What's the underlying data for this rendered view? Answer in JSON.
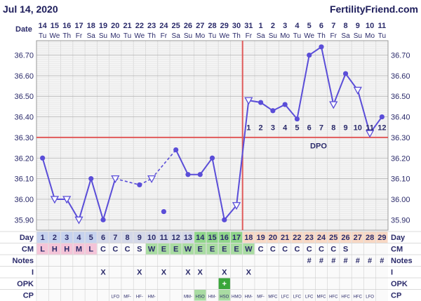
{
  "header": {
    "date_label": "Jul 14, 2020",
    "brand": "FertilityFriend.com"
  },
  "chart_data": {
    "type": "line",
    "ylim": [
      35.85,
      36.77
    ],
    "yticks": [
      "36.70",
      "36.60",
      "36.50",
      "36.40",
      "36.30",
      "36.20",
      "36.10",
      "36.00",
      "35.90"
    ],
    "ytick_values": [
      36.7,
      36.6,
      36.5,
      36.4,
      36.3,
      36.2,
      36.1,
      36.0,
      35.9
    ],
    "row_labels": {
      "date": "Date",
      "day": "Day",
      "cm": "CM",
      "notes": "Notes",
      "i": "I",
      "opk": "OPK",
      "cp": "CP"
    },
    "dates": [
      "14",
      "15",
      "16",
      "17",
      "18",
      "19",
      "20",
      "21",
      "22",
      "23",
      "24",
      "25",
      "26",
      "27",
      "28",
      "29",
      "30",
      "31",
      "1",
      "2",
      "3",
      "4",
      "5",
      "6",
      "7",
      "8",
      "9",
      "10",
      "11"
    ],
    "weekdays": [
      "Tu",
      "We",
      "Th",
      "Fr",
      "Sa",
      "Su",
      "Mo",
      "Tu",
      "We",
      "Th",
      "Fr",
      "Sa",
      "Su",
      "Mo",
      "Tu",
      "We",
      "Th",
      "Fr",
      "Sa",
      "Su",
      "Mo",
      "Tu",
      "We",
      "Th",
      "Fr",
      "Sa",
      "Su",
      "Mo",
      "Tu"
    ],
    "days": [
      "1",
      "2",
      "3",
      "4",
      "5",
      "6",
      "7",
      "8",
      "9",
      "10",
      "11",
      "12",
      "13",
      "14",
      "15",
      "16",
      "17",
      "18",
      "19",
      "20",
      "21",
      "22",
      "23",
      "24",
      "25",
      "26",
      "27",
      "28",
      "29"
    ],
    "temps": [
      36.2,
      36.0,
      36.0,
      35.9,
      36.1,
      35.9,
      36.1,
      null,
      36.07,
      36.1,
      35.94,
      36.24,
      36.12,
      36.12,
      36.2,
      35.9,
      35.97,
      36.48,
      36.47,
      36.43,
      36.46,
      36.39,
      36.7,
      36.74,
      36.46,
      36.61,
      36.53,
      36.32,
      36.4
    ],
    "marker": [
      "c",
      "t",
      "t",
      "t",
      "c",
      "c",
      "t",
      null,
      "c",
      "t",
      "c",
      "c",
      "c",
      "c",
      "c",
      "c",
      "t",
      "t",
      "c",
      "c",
      "c",
      "c",
      "c",
      "c",
      "t",
      "c",
      "t",
      "t",
      "c"
    ],
    "series_breaks": [
      [
        5,
        6,
        "solid"
      ],
      [
        6,
        8,
        "dashed"
      ],
      [
        9,
        11,
        "dashed"
      ],
      [
        10,
        "isolated"
      ]
    ],
    "coverline": 36.3,
    "ovulation_day": 17,
    "dpo_numbers": [
      "1",
      "2",
      "3",
      "4",
      "5",
      "6",
      "7",
      "8",
      "9",
      "10",
      "11",
      "12"
    ],
    "dpo_label": "DPO",
    "cm": [
      "L",
      "H",
      "H",
      "M",
      "L",
      "C",
      "C",
      "C",
      "S",
      "W",
      "E",
      "E",
      "W",
      "E",
      "E",
      "E",
      "E",
      "W",
      "C",
      "C",
      "C",
      "C",
      "C",
      "C",
      "C",
      "S",
      "",
      "",
      ""
    ],
    "notes": [
      "",
      "",
      "",
      "",
      "",
      "",
      "",
      "",
      "",
      "",
      "",
      "",
      "",
      "",
      "",
      "",
      "",
      "",
      "",
      "",
      "",
      "",
      "#",
      "#",
      "#",
      "#",
      "#",
      "#",
      "#"
    ],
    "intercourse": [
      "",
      "",
      "",
      "",
      "",
      "X",
      "",
      "",
      "X",
      "",
      "X",
      "",
      "X",
      "X",
      "",
      "X",
      "",
      "X",
      "",
      "",
      "",
      "",
      "",
      "",
      "",
      "",
      "",
      "",
      ""
    ],
    "opk": [
      "",
      "",
      "",
      "",
      "",
      "",
      "",
      "",
      "",
      "",
      "",
      "",
      "",
      "",
      "",
      "+",
      "",
      "",
      "",
      "",
      "",
      "",
      "",
      "",
      "",
      "",
      "",
      "",
      ""
    ],
    "cp": [
      "",
      "",
      "",
      "",
      "",
      "",
      "LFO",
      "MF-",
      "HF-",
      "HM-",
      "",
      "",
      "MM-",
      "HSO",
      "HM-",
      "HSO",
      "HMO",
      "HM-",
      "MF-",
      "MFC",
      "LFC",
      "LFC",
      "LFC",
      "MFC",
      "HFC",
      "HFC",
      "HFC",
      "LFO",
      ""
    ],
    "colors": {
      "line": "#5a4dd8",
      "coverline": "#e05a5a",
      "ovulation": "#e05a5a",
      "day_pink": "#f4c4d8",
      "day_green": "#8fd68a",
      "day_blue": "#c6d2ee",
      "day_peach": "#f8d8c4",
      "day_plain": "#d4d8e8",
      "fertile": "#a9dca2"
    }
  }
}
